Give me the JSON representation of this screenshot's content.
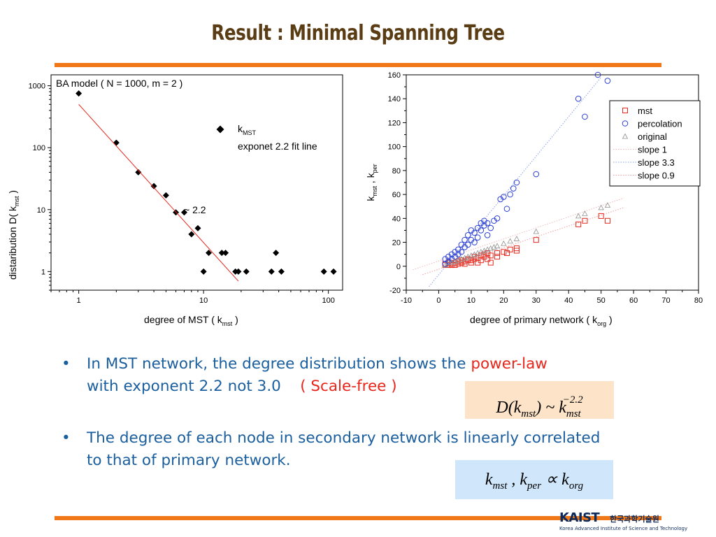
{
  "title": "Result :  Minimal Spanning Tree",
  "bullets": {
    "b1_text1": "In MST network, the degree distribution shows the ",
    "b1_red1": "power-law",
    "b1_text2": "with exponent 2.2 not 3.0",
    "b1_red2": "( Scale-free )",
    "b2_text": "The degree of each node in secondary network is linearly correlated to that of primary network."
  },
  "formula1": {
    "d": "D(k",
    "sub": "mst",
    "mid": ") ~ k",
    "sub2": "mst",
    "sup": "−2.2"
  },
  "formula2": {
    "a": "k",
    "sa": "mst",
    "b": " , k",
    "sb": "per",
    "c": "  ∝ k",
    "sc": "org"
  },
  "logo": {
    "name": "KAIST",
    "korean": "한국과학기술원",
    "english": "Korea Advanced Institute of Science and Technology"
  },
  "colors": {
    "accent": "#f07818",
    "title": "#5a3d14",
    "bullet": "#1a5e9e",
    "highlight": "#e8261b"
  },
  "chart_data": [
    {
      "type": "scatter",
      "annotation_title": "BA model ( N = 1000, m = 2 )",
      "xscale": "log",
      "yscale": "log",
      "xlim": [
        0.6,
        130
      ],
      "ylim": [
        0.5,
        1500
      ],
      "xticks": [
        {
          "v": 1,
          "label": "1"
        },
        {
          "v": 10,
          "label": "10"
        },
        {
          "v": 100,
          "label": "100"
        }
      ],
      "yticks": [
        {
          "v": 1,
          "label": "1"
        },
        {
          "v": 10,
          "label": "10"
        },
        {
          "v": 100,
          "label": "100"
        },
        {
          "v": 1000,
          "label": "1000"
        }
      ],
      "xlabel": {
        "main": "degree of MST ( k",
        "sub": "mst",
        "end": " )"
      },
      "ylabel": {
        "main": "distaribution  D( k",
        "sub": "mst",
        "end": " )"
      },
      "legend": {
        "marker_label": "k",
        "marker_sub": "MST",
        "fit_label": "exponet 2.2 fit line",
        "placement": "top-right"
      },
      "annotation": "~ 2.2",
      "points": [
        [
          1,
          750
        ],
        [
          2,
          120
        ],
        [
          3,
          40
        ],
        [
          4,
          24
        ],
        [
          5,
          17
        ],
        [
          6,
          9
        ],
        [
          7,
          9
        ],
        [
          8,
          4
        ],
        [
          9,
          5
        ],
        [
          10,
          1
        ],
        [
          11,
          2
        ],
        [
          14,
          2
        ],
        [
          15,
          2
        ],
        [
          18,
          1
        ],
        [
          19,
          1
        ],
        [
          22,
          1
        ],
        [
          35,
          1
        ],
        [
          38,
          2
        ],
        [
          42,
          1
        ],
        [
          92,
          1
        ],
        [
          110,
          1
        ]
      ],
      "fit_line": [
        [
          1,
          500
        ],
        [
          19,
          0.7
        ]
      ]
    },
    {
      "type": "scatter",
      "xlim": [
        -10,
        80
      ],
      "ylim": [
        -20,
        160
      ],
      "xticks": [
        -10,
        0,
        10,
        20,
        30,
        40,
        50,
        60,
        70,
        80
      ],
      "yticks": [
        -20,
        0,
        20,
        40,
        60,
        80,
        100,
        120,
        140,
        160
      ],
      "xlabel": {
        "main": "degree of primary network ( k",
        "sub": "org",
        "end": " )"
      },
      "ylabel": {
        "main": "k",
        "sub1": "mst",
        "sep": " ,  k",
        "sub2": "per"
      },
      "legend": {
        "placement": "top-right",
        "entries": [
          "mst",
          "percolation",
          "original",
          "slope 1",
          "slope 3.3",
          "slope 0.9"
        ]
      },
      "series": [
        {
          "name": "mst",
          "marker": "square",
          "color": "#e8261b",
          "points": [
            [
              2,
              1
            ],
            [
              2,
              2
            ],
            [
              3,
              1
            ],
            [
              3,
              3
            ],
            [
              4,
              1
            ],
            [
              4,
              2
            ],
            [
              5,
              1
            ],
            [
              5,
              3
            ],
            [
              6,
              2
            ],
            [
              6,
              4
            ],
            [
              7,
              3
            ],
            [
              7,
              5
            ],
            [
              8,
              2
            ],
            [
              8,
              4
            ],
            [
              9,
              5
            ],
            [
              9,
              6
            ],
            [
              10,
              3
            ],
            [
              10,
              5
            ],
            [
              11,
              6
            ],
            [
              11,
              8
            ],
            [
              12,
              3
            ],
            [
              12,
              7
            ],
            [
              13,
              5
            ],
            [
              13,
              9
            ],
            [
              14,
              8
            ],
            [
              14,
              10
            ],
            [
              15,
              6
            ],
            [
              15,
              11
            ],
            [
              16,
              3
            ],
            [
              16,
              9
            ],
            [
              18,
              8
            ],
            [
              18,
              11
            ],
            [
              20,
              12
            ],
            [
              21,
              11
            ],
            [
              22,
              14
            ],
            [
              24,
              13
            ],
            [
              24,
              15
            ],
            [
              30,
              22
            ],
            [
              43,
              35
            ],
            [
              45,
              38
            ],
            [
              50,
              42
            ],
            [
              52,
              38
            ]
          ]
        },
        {
          "name": "percolation",
          "marker": "circle",
          "color": "#2a3fd6",
          "points": [
            [
              2,
              2
            ],
            [
              2,
              6
            ],
            [
              3,
              4
            ],
            [
              3,
              8
            ],
            [
              4,
              6
            ],
            [
              4,
              10
            ],
            [
              5,
              8
            ],
            [
              5,
              12
            ],
            [
              6,
              10
            ],
            [
              6,
              14
            ],
            [
              7,
              12
            ],
            [
              7,
              18
            ],
            [
              8,
              16
            ],
            [
              8,
              22
            ],
            [
              9,
              18
            ],
            [
              9,
              26
            ],
            [
              10,
              22
            ],
            [
              10,
              30
            ],
            [
              11,
              20
            ],
            [
              11,
              28
            ],
            [
              12,
              24
            ],
            [
              12,
              32
            ],
            [
              13,
              30
            ],
            [
              13,
              36
            ],
            [
              14,
              34
            ],
            [
              14,
              38
            ],
            [
              15,
              26
            ],
            [
              15,
              36
            ],
            [
              16,
              32
            ],
            [
              17,
              38
            ],
            [
              18,
              40
            ],
            [
              19,
              56
            ],
            [
              20,
              58
            ],
            [
              21,
              48
            ],
            [
              22,
              60
            ],
            [
              23,
              65
            ],
            [
              24,
              70
            ],
            [
              30,
              77
            ],
            [
              43,
              140
            ],
            [
              45,
              125
            ],
            [
              49,
              160
            ],
            [
              52,
              155
            ]
          ]
        },
        {
          "name": "original",
          "marker": "triangle",
          "color": "#909090",
          "points": [
            [
              2,
              1
            ],
            [
              3,
              3
            ],
            [
              4,
              3
            ],
            [
              5,
              4
            ],
            [
              6,
              5
            ],
            [
              7,
              6
            ],
            [
              8,
              7
            ],
            [
              9,
              8
            ],
            [
              10,
              9
            ],
            [
              11,
              10
            ],
            [
              12,
              11
            ],
            [
              13,
              12
            ],
            [
              14,
              13
            ],
            [
              15,
              14
            ],
            [
              16,
              15
            ],
            [
              17,
              16
            ],
            [
              18,
              17
            ],
            [
              20,
              19
            ],
            [
              22,
              21
            ],
            [
              24,
              23
            ],
            [
              30,
              29
            ],
            [
              43,
              42
            ],
            [
              45,
              44
            ],
            [
              50,
              49
            ],
            [
              52,
              51
            ]
          ]
        },
        {
          "name": "slope 1",
          "type": "line",
          "color": "#f0b8b8",
          "points": [
            [
              -8,
              -3
            ],
            [
              57,
              57
            ]
          ]
        },
        {
          "name": "slope 3.3",
          "type": "line",
          "color": "#8aa0e8",
          "points": [
            [
              -3,
              -17
            ],
            [
              50,
              158
            ]
          ]
        },
        {
          "name": "slope 0.9",
          "type": "line",
          "color": "#f2a0a0",
          "points": [
            [
              -5,
              -7
            ],
            [
              57,
              49
            ]
          ]
        }
      ]
    }
  ]
}
